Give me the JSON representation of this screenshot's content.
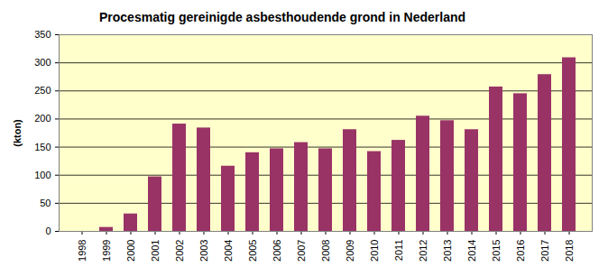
{
  "chart_data": {
    "type": "bar",
    "title": "Procesmatig gereinigde asbesthoudende grond in Nederland",
    "y_label": "(kton)",
    "categories": [
      "1998",
      "1999",
      "2000",
      "2001",
      "2002",
      "2003",
      "2004",
      "2005",
      "2006",
      "2007",
      "2008",
      "2009",
      "2010",
      "2011",
      "2012",
      "2013",
      "2014",
      "2015",
      "2016",
      "2017",
      "2018"
    ],
    "values": [
      0,
      7,
      31,
      97,
      191,
      184,
      116,
      140,
      147,
      158,
      147,
      181,
      142,
      162,
      205,
      197,
      181,
      257,
      245,
      279,
      309
    ],
    "color": "#993366",
    "ylim": [
      0,
      350
    ],
    "yticks": [
      0,
      50,
      100,
      150,
      200,
      250,
      300,
      350
    ],
    "grid": true
  }
}
